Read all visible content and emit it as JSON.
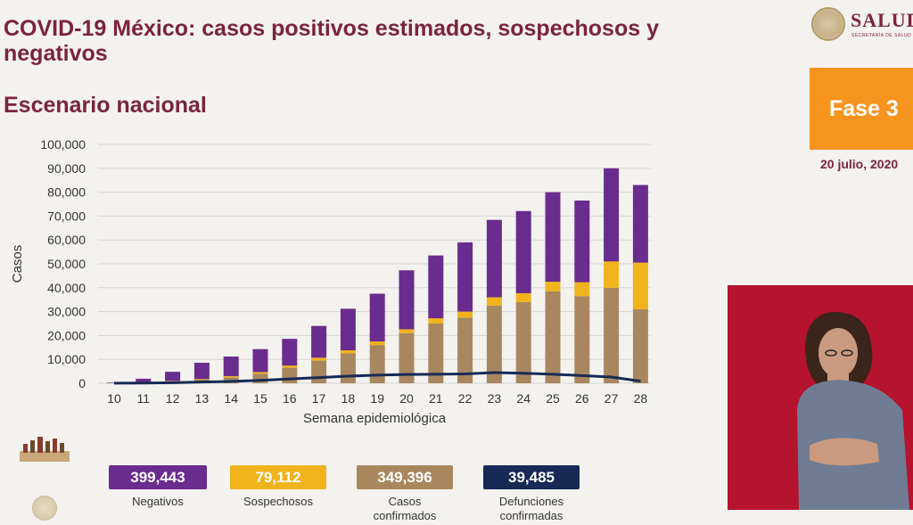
{
  "header": {
    "title": "COVID-19 México: casos positivos estimados, sospechosos y negativos",
    "subtitle": "Escenario nacional",
    "logo_text": "SALUD",
    "logo_subtext": "SECRETARÍA DE SALUD",
    "phase": "Fase 3",
    "date": "20 julio, 2020"
  },
  "chart_data": {
    "type": "bar",
    "stacked": true,
    "xlabel": "Semana epidemiológica",
    "ylabel": "Casos",
    "ylim": [
      0,
      100000
    ],
    "yticks": [
      0,
      10000,
      20000,
      30000,
      40000,
      50000,
      60000,
      70000,
      80000,
      90000,
      100000
    ],
    "ytick_labels": [
      "0",
      "10,000",
      "20,000",
      "30,000",
      "40,000",
      "50,000",
      "60,000",
      "70,000",
      "80,000",
      "90,000",
      "100,000"
    ],
    "grid": true,
    "categories": [
      "10",
      "11",
      "12",
      "13",
      "14",
      "15",
      "16",
      "17",
      "18",
      "19",
      "20",
      "21",
      "22",
      "23",
      "24",
      "25",
      "26",
      "27",
      "28"
    ],
    "series": [
      {
        "key": "confirmados",
        "color": "#a8875f",
        "values": [
          100,
          300,
          800,
          1500,
          2500,
          4000,
          6500,
          9500,
          12500,
          16000,
          21000,
          25000,
          27500,
          32500,
          34000,
          38500,
          36500,
          40000,
          31000
        ]
      },
      {
        "key": "sospechosos",
        "color": "#f0b31c",
        "values": [
          0,
          100,
          200,
          300,
          500,
          700,
          900,
          1200,
          1300,
          1500,
          1600,
          2200,
          2500,
          3500,
          3700,
          4000,
          5800,
          11000,
          19500
        ]
      },
      {
        "key": "negativos",
        "color": "#6a2c8e",
        "values": [
          200,
          1500,
          3800,
          6800,
          8200,
          9600,
          11200,
          13300,
          17400,
          20000,
          24700,
          26300,
          29000,
          32400,
          34400,
          37500,
          34200,
          39000,
          32500
        ]
      }
    ],
    "line": {
      "key": "defunciones",
      "color": "#172a56",
      "values": [
        50,
        100,
        250,
        500,
        800,
        1200,
        1800,
        2400,
        3000,
        3400,
        3700,
        3800,
        3900,
        4500,
        4200,
        3800,
        3200,
        2600,
        900
      ]
    }
  },
  "totals": [
    {
      "value": "399,443",
      "label": "Negativos",
      "color": "#6a2c8e"
    },
    {
      "value": "79,112",
      "label": "Sospechosos",
      "color": "#f0b31c"
    },
    {
      "value": "349,396",
      "label": "Casos confirmados",
      "color": "#a8875f"
    },
    {
      "value": "39,485",
      "label": "Defunciones confirmadas",
      "color": "#172a56"
    }
  ]
}
